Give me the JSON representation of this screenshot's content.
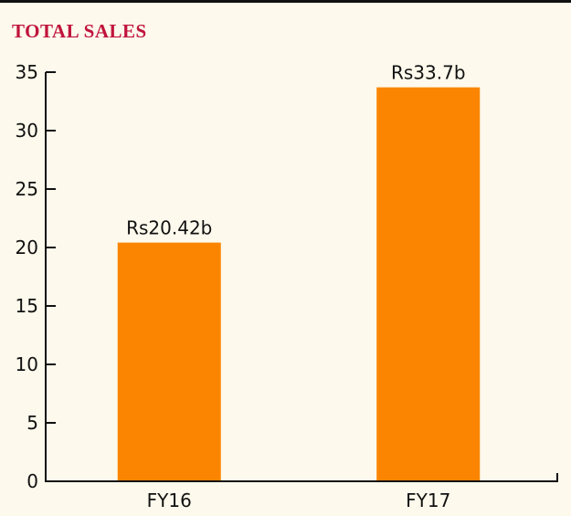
{
  "chart_data": {
    "type": "bar",
    "title": "TOTAL SALES",
    "categories": [
      "FY16",
      "FY17"
    ],
    "values": [
      20.42,
      33.7
    ],
    "data_labels": [
      "Rs20.42b",
      "Rs33.7b"
    ],
    "ylim": [
      0,
      35
    ],
    "yticks": [
      0,
      5,
      10,
      15,
      20,
      25,
      30,
      35
    ],
    "grid": false,
    "bar_color": "#fb8500",
    "title_color": "#c0143c",
    "axis_color": "#111111",
    "background": "#fdf9ec"
  }
}
